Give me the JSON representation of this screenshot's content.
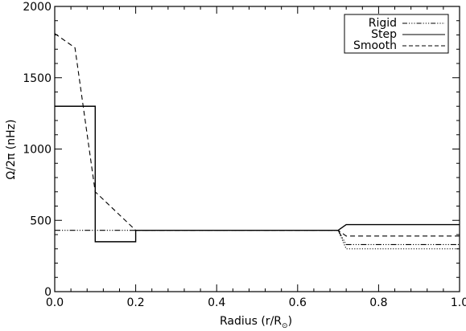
{
  "chart_data": {
    "type": "line",
    "xlabel": "Radius (r/R⊙)",
    "xlabel_main": "Radius (r/R",
    "xlabel_sub": "⊙",
    "xlabel_close": ")",
    "ylabel": "Ω/2π (nHz)",
    "xlim": [
      0.0,
      1.0
    ],
    "ylim": [
      0,
      2000
    ],
    "xticks": [
      0.0,
      0.2,
      0.4,
      0.6,
      0.8,
      1.0
    ],
    "xtick_labels": [
      "0.0",
      "0.2",
      "0.4",
      "0.6",
      "0.8",
      "1.0"
    ],
    "yticks": [
      0,
      500,
      1000,
      1500,
      2000
    ],
    "ytick_labels": [
      "0",
      "500",
      "1000",
      "1500",
      "2000"
    ],
    "legend_position": "top-right",
    "legend": [
      {
        "label": "Rigid",
        "style": "dash-dot-dot-dot"
      },
      {
        "label": "Step",
        "style": "solid"
      },
      {
        "label": "Smooth",
        "style": "dashed"
      }
    ],
    "series": [
      {
        "name": "Rigid",
        "style": "dash-dot-dot-dot",
        "x": [
          0.0,
          0.7,
          0.72,
          1.0
        ],
        "y": [
          430,
          430,
          330,
          330
        ]
      },
      {
        "name": "Step",
        "style": "solid",
        "x": [
          0.0,
          0.1,
          0.1,
          0.2,
          0.2,
          0.7,
          0.72,
          1.0
        ],
        "y": [
          1300,
          1300,
          350,
          350,
          430,
          430,
          470,
          470
        ]
      },
      {
        "name": "Smooth",
        "style": "dashed",
        "x": [
          0.0,
          0.05,
          0.1,
          0.2,
          0.7,
          0.72,
          1.0
        ],
        "y": [
          1810,
          1710,
          700,
          430,
          430,
          390,
          390
        ]
      },
      {
        "style": "dotted",
        "x": [
          0.7,
          0.72,
          1.0
        ],
        "y": [
          430,
          300,
          300
        ]
      }
    ]
  }
}
